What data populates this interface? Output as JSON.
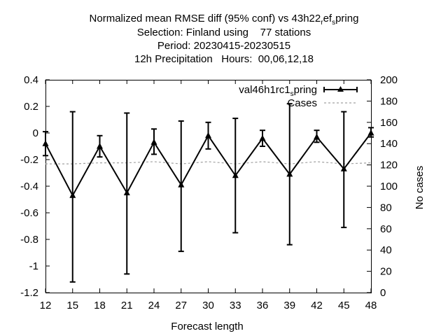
{
  "chart_data": {
    "type": "line",
    "title": {
      "line1_prefix": "Normalized mean RMSE diff (95% conf) vs 43h22",
      "line1_sub1": "r",
      "line1_mid": "ef",
      "line1_sub2": "s",
      "line1_suffix": "pring",
      "line2": "Selection: Finland using    77 stations",
      "line3": "Period: 20230415-20230515",
      "line4": "12h Precipitation   Hours:  00,06,12,18"
    },
    "xlabel": "Forecast length",
    "ylabel_right": "No cases",
    "xlim": [
      12,
      48
    ],
    "ylim": [
      -1.2,
      0.4
    ],
    "y2lim": [
      0,
      200
    ],
    "xticks": [
      "12",
      "15",
      "18",
      "21",
      "24",
      "27",
      "30",
      "33",
      "36",
      "39",
      "42",
      "45",
      "48"
    ],
    "yticks": [
      "0.4",
      "0.2",
      "0",
      "-0.2",
      "-0.4",
      "-0.6",
      "-0.8",
      "-1",
      "-1.2"
    ],
    "y2ticks": [
      "200",
      "180",
      "160",
      "140",
      "120",
      "100",
      "80",
      "60",
      "40",
      "20",
      "0"
    ],
    "grid": false,
    "legend_position": "top-right",
    "series": [
      {
        "name_prefix": "val46h1rc1",
        "name_sub": "s",
        "name_suffix": "pring",
        "color": "#000000",
        "x": [
          12,
          15,
          18,
          21,
          24,
          27,
          30,
          33,
          36,
          39,
          42,
          45,
          48
        ],
        "y": [
          -0.08,
          -0.47,
          -0.1,
          -0.45,
          -0.07,
          -0.39,
          -0.02,
          -0.32,
          -0.04,
          -0.31,
          -0.03,
          -0.27,
          0.0
        ],
        "lower": [
          -0.17,
          -1.12,
          -0.18,
          -1.06,
          -0.16,
          -0.89,
          -0.12,
          -0.75,
          -0.1,
          -0.84,
          -0.07,
          -0.71,
          -0.03
        ],
        "upper": [
          0.01,
          0.16,
          -0.02,
          0.15,
          0.03,
          0.09,
          0.08,
          0.11,
          0.02,
          0.22,
          0.02,
          0.16,
          0.04
        ]
      },
      {
        "name": "Cases",
        "color": "#a0a0a0",
        "axis": "right",
        "x": [
          12,
          15,
          18,
          21,
          24,
          27,
          30,
          33,
          36,
          39,
          42,
          45,
          48
        ],
        "values": [
          121,
          121,
          122,
          122,
          123,
          121,
          123,
          121,
          123,
          121,
          123,
          121,
          122
        ]
      }
    ]
  }
}
